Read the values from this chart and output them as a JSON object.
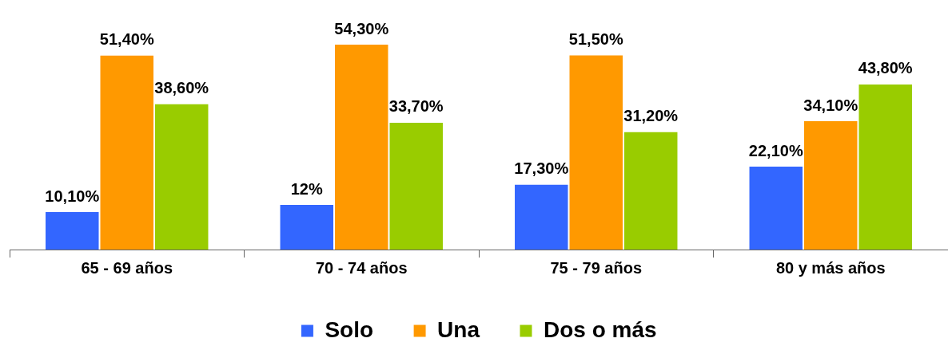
{
  "chart_data": {
    "type": "bar",
    "categories": [
      "65 - 69 años",
      "70 - 74 años",
      "75 - 79 años",
      "80 y más años"
    ],
    "series": [
      {
        "name": "Solo",
        "color": "#3366ff",
        "values": [
          10.1,
          12,
          17.3,
          22.1
        ],
        "value_labels": [
          "10,10%",
          "12%",
          "17,30%",
          "22,10%"
        ]
      },
      {
        "name": "Una",
        "color": "#ff9900",
        "values": [
          51.4,
          54.3,
          51.5,
          34.1
        ],
        "value_labels": [
          "51,40%",
          "54,30%",
          "51,50%",
          "34,10%"
        ]
      },
      {
        "name": "Dos o más",
        "color": "#99cc00",
        "values": [
          38.6,
          33.7,
          31.2,
          43.8
        ],
        "value_labels": [
          "38,60%",
          "33,70%",
          "31,20%",
          "43,80%"
        ]
      }
    ],
    "legend": "bottom",
    "grid": false
  }
}
